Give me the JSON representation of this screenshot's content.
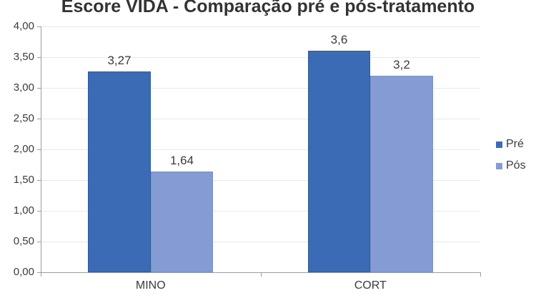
{
  "chart_data": {
    "type": "bar",
    "title": "Escore VIDA - Comparação pré e pós-tratamento",
    "categories": [
      "MINO",
      "CORT"
    ],
    "series": [
      {
        "name": "Pré",
        "color": "#3B6BB4",
        "border_color": "#2F5A9C",
        "values": [
          3.27,
          3.6
        ],
        "value_labels": [
          "3,27",
          "3,6"
        ]
      },
      {
        "name": "Pós",
        "color": "#849CD3",
        "border_color": "#7A91C8",
        "values": [
          1.64,
          3.2
        ],
        "value_labels": [
          "1,64",
          "3,2"
        ]
      }
    ],
    "ylim": [
      0,
      4
    ],
    "ytick_labels": [
      "0,00",
      "0,50",
      "1,00",
      "1,50",
      "2,00",
      "2,50",
      "3,00",
      "3,50",
      "4,00"
    ],
    "grid": true,
    "legend_position": "right",
    "colors": {
      "gridline": "#E9E9E9",
      "axis": "#9C9C9C",
      "text": "#3B3B3B",
      "title": "#333333"
    }
  }
}
